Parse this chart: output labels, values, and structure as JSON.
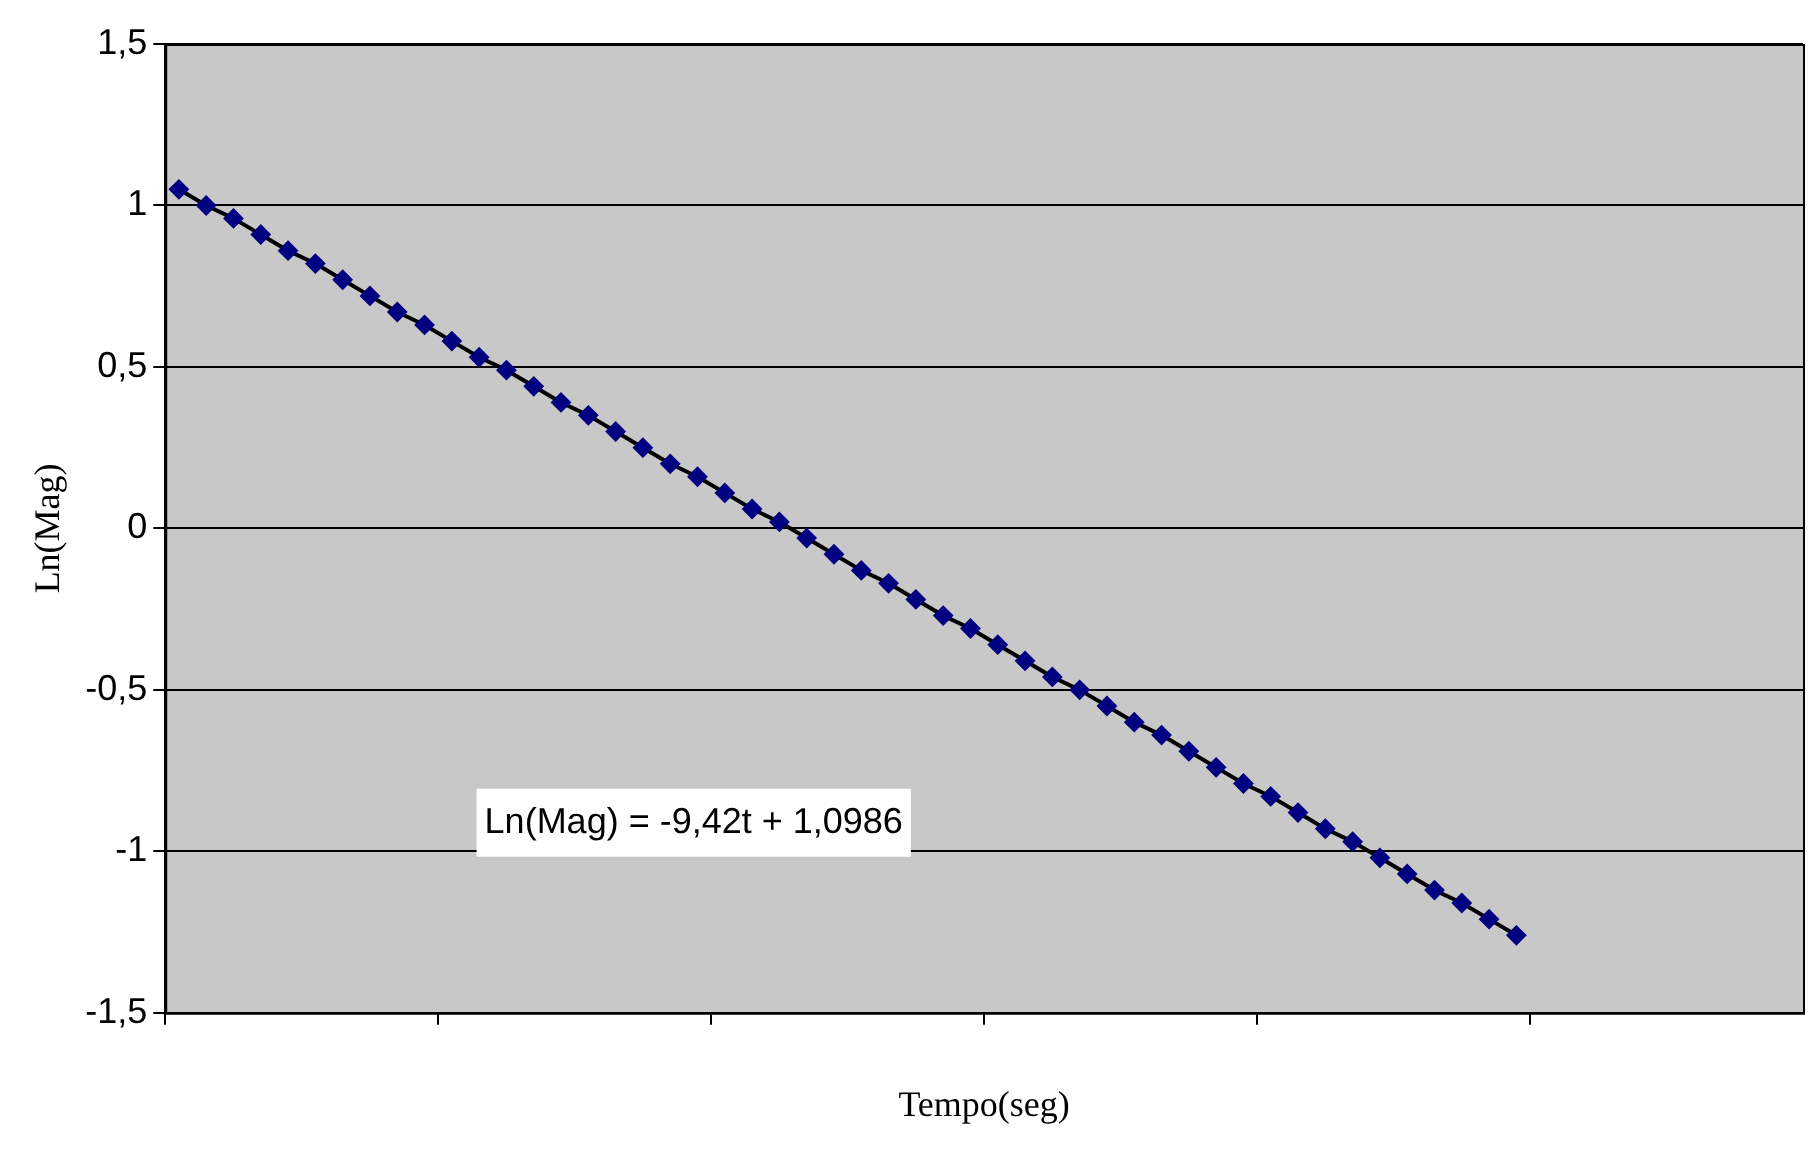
{
  "chart_data": {
    "type": "line",
    "xlabel": "Tempo(seg)",
    "ylabel": "Ln(Mag)",
    "categories": [
      null,
      null,
      null,
      null,
      null,
      null,
      null,
      null,
      null,
      null,
      null,
      null,
      null,
      null,
      null,
      null,
      null,
      null,
      null,
      null,
      null,
      null,
      null,
      null,
      null,
      null,
      null,
      null,
      null,
      null,
      null,
      null,
      null,
      null,
      null,
      null,
      null,
      null,
      null,
      null,
      null,
      null,
      null,
      null,
      null,
      null,
      null,
      null,
      null,
      null,
      null,
      null,
      null,
      null,
      null,
      null,
      null,
      null,
      null,
      null
    ],
    "series": [
      {
        "type": "scatter",
        "color": "#000080",
        "marker": "diamond",
        "values": [
          1.05,
          1.0,
          0.96,
          0.91,
          0.86,
          0.82,
          0.77,
          0.72,
          0.67,
          0.63,
          0.58,
          0.53,
          0.49,
          0.44,
          0.39,
          0.35,
          0.3,
          0.25,
          0.2,
          0.16,
          0.11,
          0.06,
          0.02,
          -0.03,
          -0.08,
          -0.13,
          -0.17,
          -0.22,
          -0.27,
          -0.31,
          -0.36,
          -0.41,
          -0.46,
          -0.5,
          -0.55,
          -0.6,
          -0.64,
          -0.69,
          -0.74,
          -0.79,
          -0.83,
          -0.88,
          -0.93,
          -0.97,
          -1.02,
          -1.07,
          -1.12,
          -1.16,
          -1.21,
          -1.26,
          null,
          null,
          null,
          null,
          null,
          null,
          null,
          null,
          null,
          null
        ]
      },
      {
        "type": "line",
        "color": "#000000",
        "marker": "none",
        "line_style": "solid",
        "values": [
          1.05,
          1.0,
          0.96,
          0.91,
          0.86,
          0.82,
          0.77,
          0.72,
          0.67,
          0.63,
          0.58,
          0.53,
          0.49,
          0.44,
          0.39,
          0.35,
          0.3,
          0.25,
          0.2,
          0.16,
          0.11,
          0.06,
          0.02,
          -0.03,
          -0.08,
          -0.13,
          -0.17,
          -0.22,
          -0.27,
          -0.31,
          -0.36,
          -0.41,
          -0.46,
          -0.5,
          -0.55,
          -0.6,
          -0.64,
          -0.69,
          -0.74,
          -0.79,
          -0.83,
          -0.88,
          -0.93,
          -0.97,
          -1.02,
          -1.07,
          -1.12,
          -1.16,
          -1.21,
          -1.26,
          null,
          null,
          null,
          null,
          null,
          null,
          null,
          null,
          null,
          null
        ]
      }
    ],
    "ylim": [
      -1.5,
      1.5
    ],
    "yticks": [
      {
        "value": -1.5,
        "label": "-1,5"
      },
      {
        "value": -1,
        "label": "-1"
      },
      {
        "value": -0.5,
        "label": "-0,5"
      },
      0,
      {
        "value": 0.5,
        "label": "0,5"
      },
      1,
      {
        "value": 1.5,
        "label": "1,5"
      }
    ],
    "tick_labels": "y",
    "grid": "y",
    "legend": false,
    "annotations": [
      "Ln(Mag) = -9,42t + 1,0986"
    ]
  }
}
